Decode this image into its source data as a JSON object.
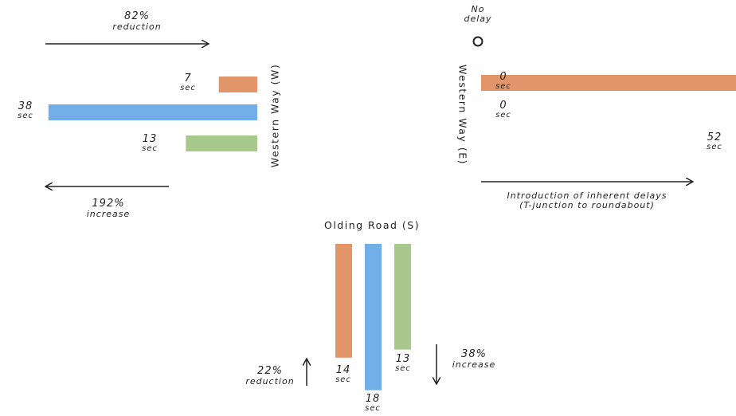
{
  "colors": {
    "orange": "#E3956A",
    "blue": "#72AEE8",
    "green": "#A8C98B",
    "text": "#222222"
  },
  "roads": {
    "west": "Western Way (W)",
    "east": "Western Way (E)",
    "south": "Olding Road (S)"
  },
  "units": {
    "sec": "sec"
  },
  "chart_data": [
    {
      "type": "bar",
      "name": "Western Way (W)",
      "orientation": "horizontal",
      "series": [
        {
          "color": "#E3956A",
          "value": 7,
          "label": "7"
        },
        {
          "color": "#72AEE8",
          "value": 38,
          "label": "38"
        },
        {
          "color": "#A8C98B",
          "value": 13,
          "label": "13"
        }
      ],
      "annotations": [
        {
          "value": "82%",
          "text": "reduction",
          "arrow": "right"
        },
        {
          "value": "192%",
          "text": "increase",
          "arrow": "left"
        }
      ]
    },
    {
      "type": "bar",
      "name": "Western Way (E)",
      "orientation": "horizontal",
      "series": [
        {
          "color": "#E3956A",
          "value": 52,
          "label": "52"
        },
        {
          "color": "#72AEE8",
          "value": 0,
          "label": "0"
        },
        {
          "color": "#A8C98B",
          "value": 0,
          "label": "0"
        }
      ],
      "annotations": [
        {
          "value": "No",
          "text": "delay",
          "marker": "circle"
        },
        {
          "text": "Introduction of inherent delays",
          "text2": "(T-junction to roundabout)",
          "arrow": "right"
        }
      ]
    },
    {
      "type": "bar",
      "name": "Olding Road (S)",
      "orientation": "vertical",
      "series": [
        {
          "color": "#E3956A",
          "value": 14,
          "label": "14"
        },
        {
          "color": "#72AEE8",
          "value": 18,
          "label": "18"
        },
        {
          "color": "#A8C98B",
          "value": 13,
          "label": "13"
        }
      ],
      "annotations": [
        {
          "value": "22%",
          "text": "reduction",
          "arrow": "up"
        },
        {
          "value": "38%",
          "text": "increase",
          "arrow": "down"
        }
      ]
    }
  ]
}
